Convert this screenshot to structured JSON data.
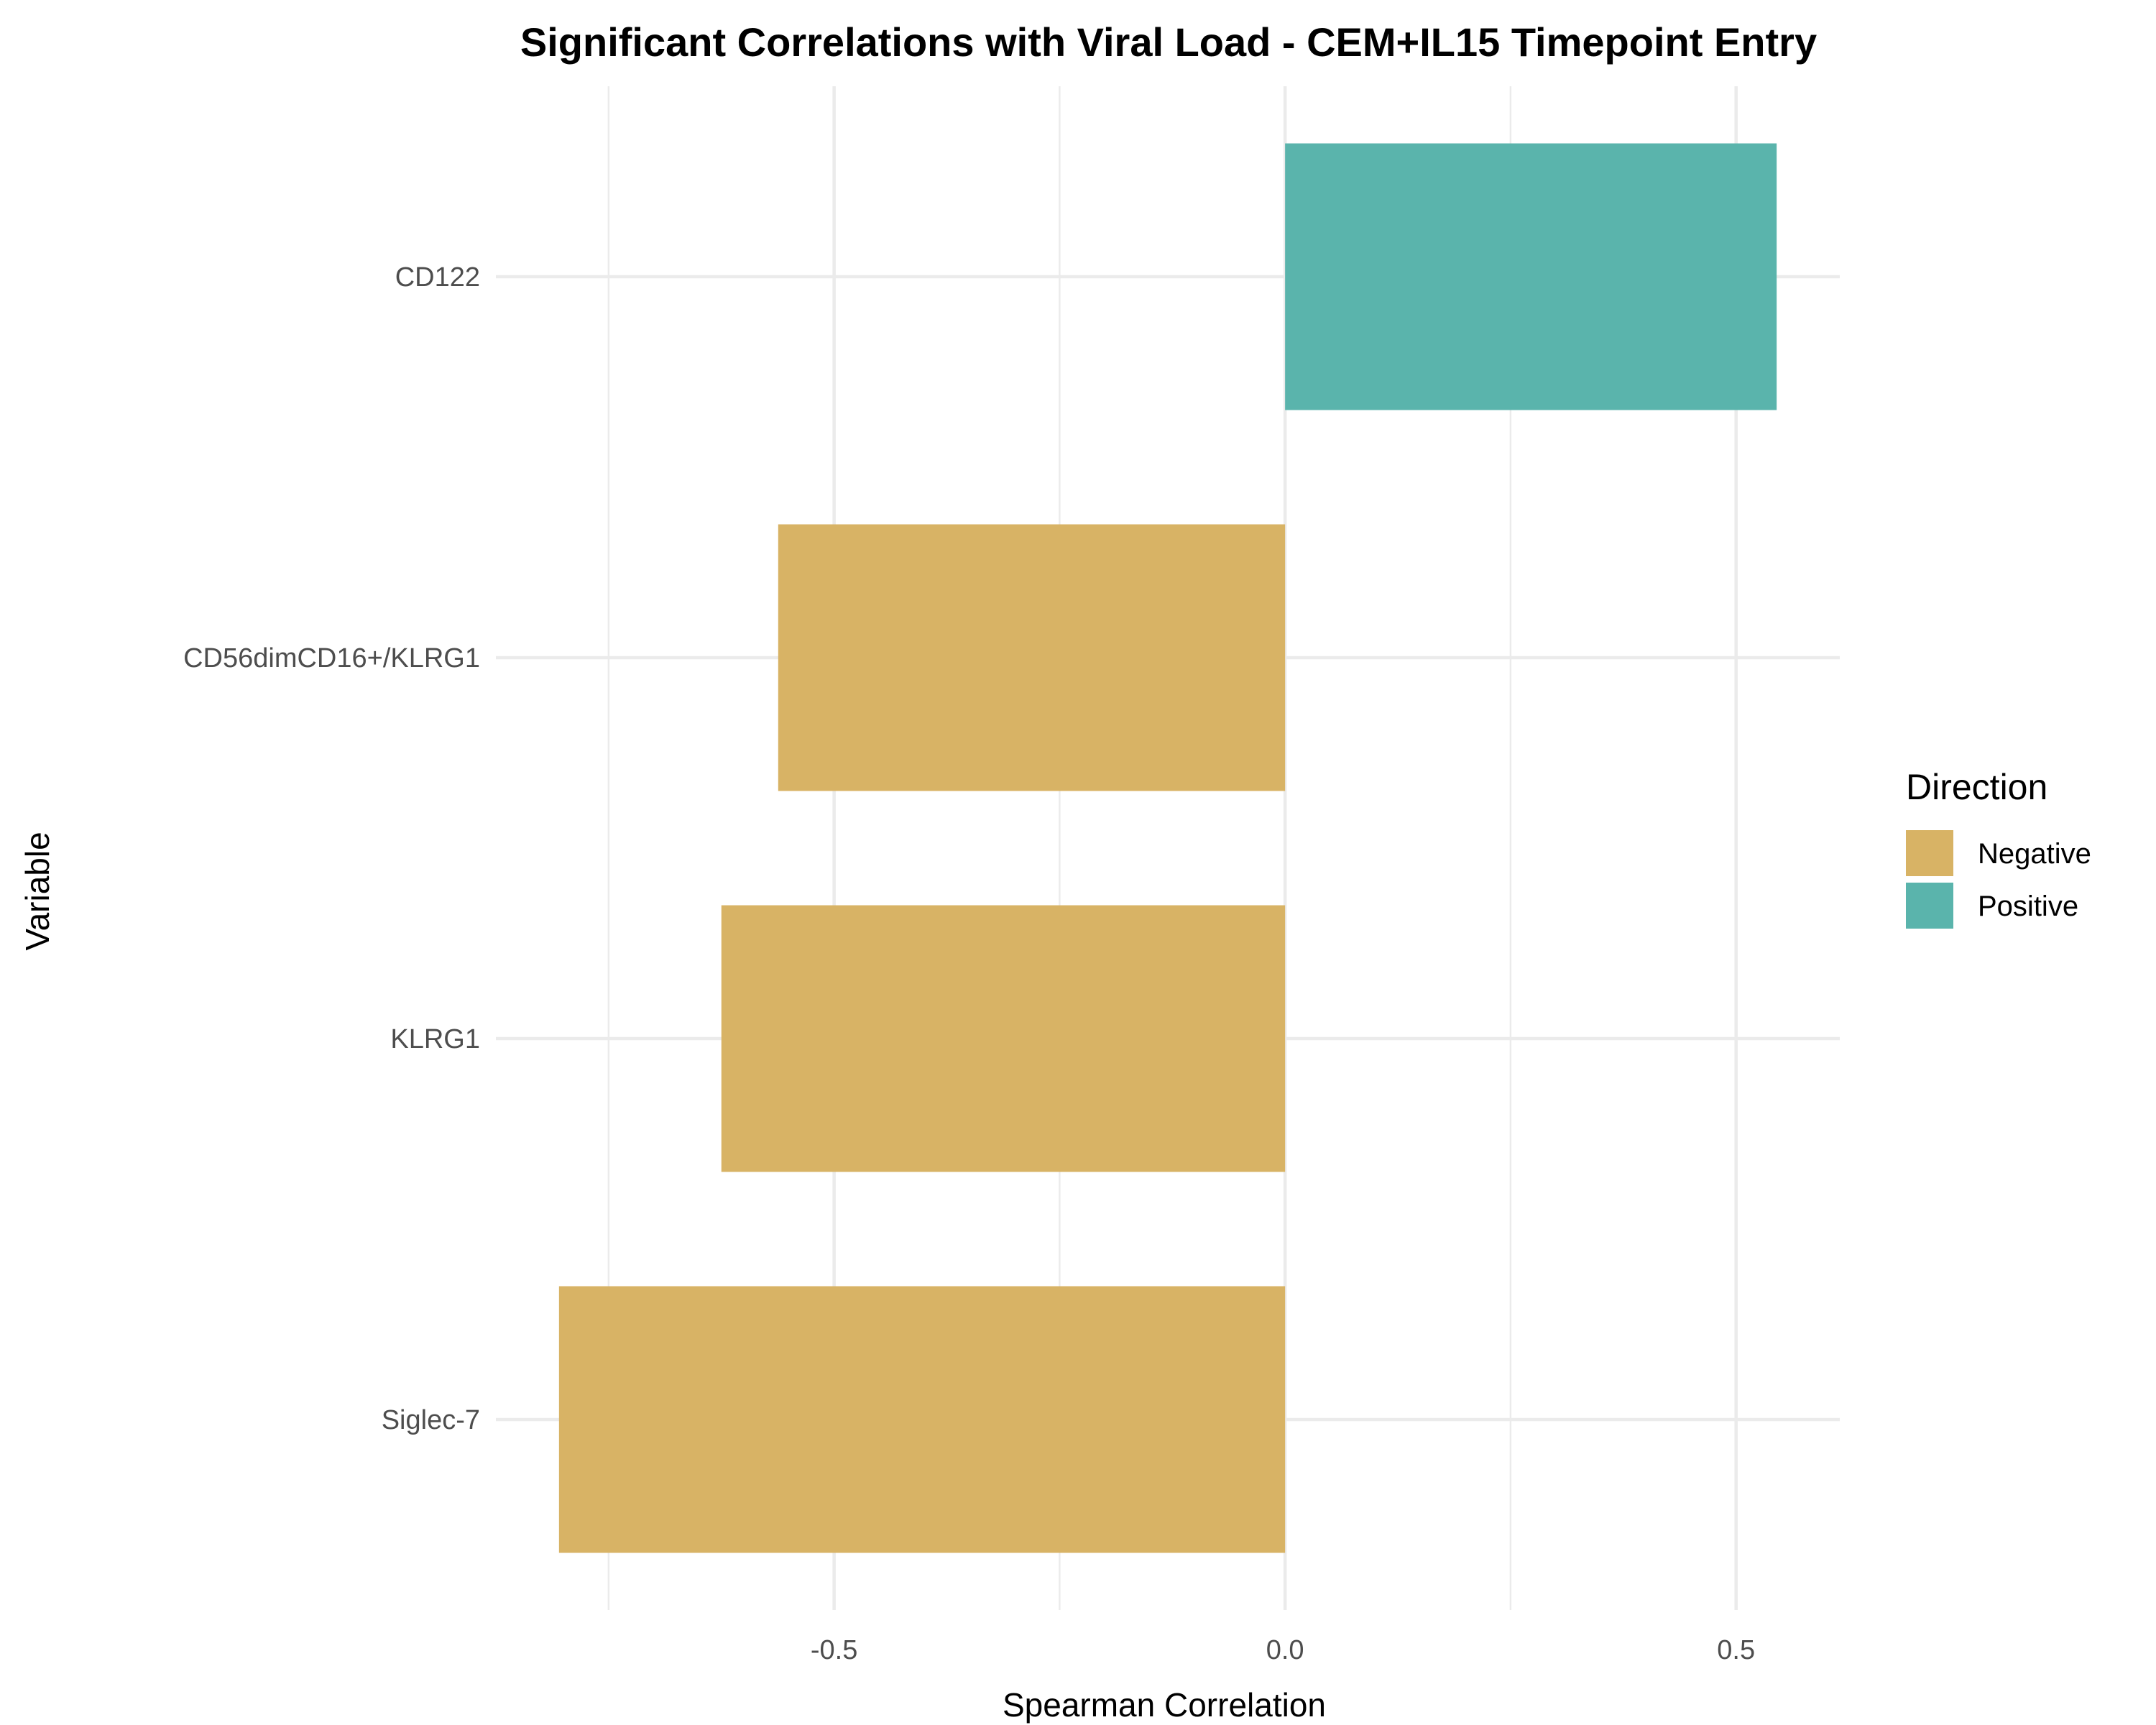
{
  "chart_data": {
    "type": "bar",
    "orientation": "horizontal",
    "title": "Significant Correlations with Viral Load - CEM+IL15 Timepoint Entry",
    "xlabel": "Spearman Correlation",
    "ylabel": "Variable",
    "categories": [
      "CD122",
      "CD56dimCD16+/KLRG1",
      "KLRG1",
      "Siglec-7"
    ],
    "values": [
      0.545,
      -0.562,
      -0.625,
      -0.805
    ],
    "direction": [
      "Positive",
      "Negative",
      "Negative",
      "Negative"
    ],
    "xlim": [
      -0.875,
      0.615
    ],
    "xticks": [
      -0.5,
      0.0,
      0.5
    ],
    "xtick_labels": [
      "-0.5",
      "0.0",
      "0.5"
    ],
    "grid": true,
    "legend": {
      "title": "Direction",
      "position": "right",
      "entries": [
        {
          "label": "Negative",
          "color": "#d8b365"
        },
        {
          "label": "Positive",
          "color": "#5ab4ac"
        }
      ]
    }
  }
}
